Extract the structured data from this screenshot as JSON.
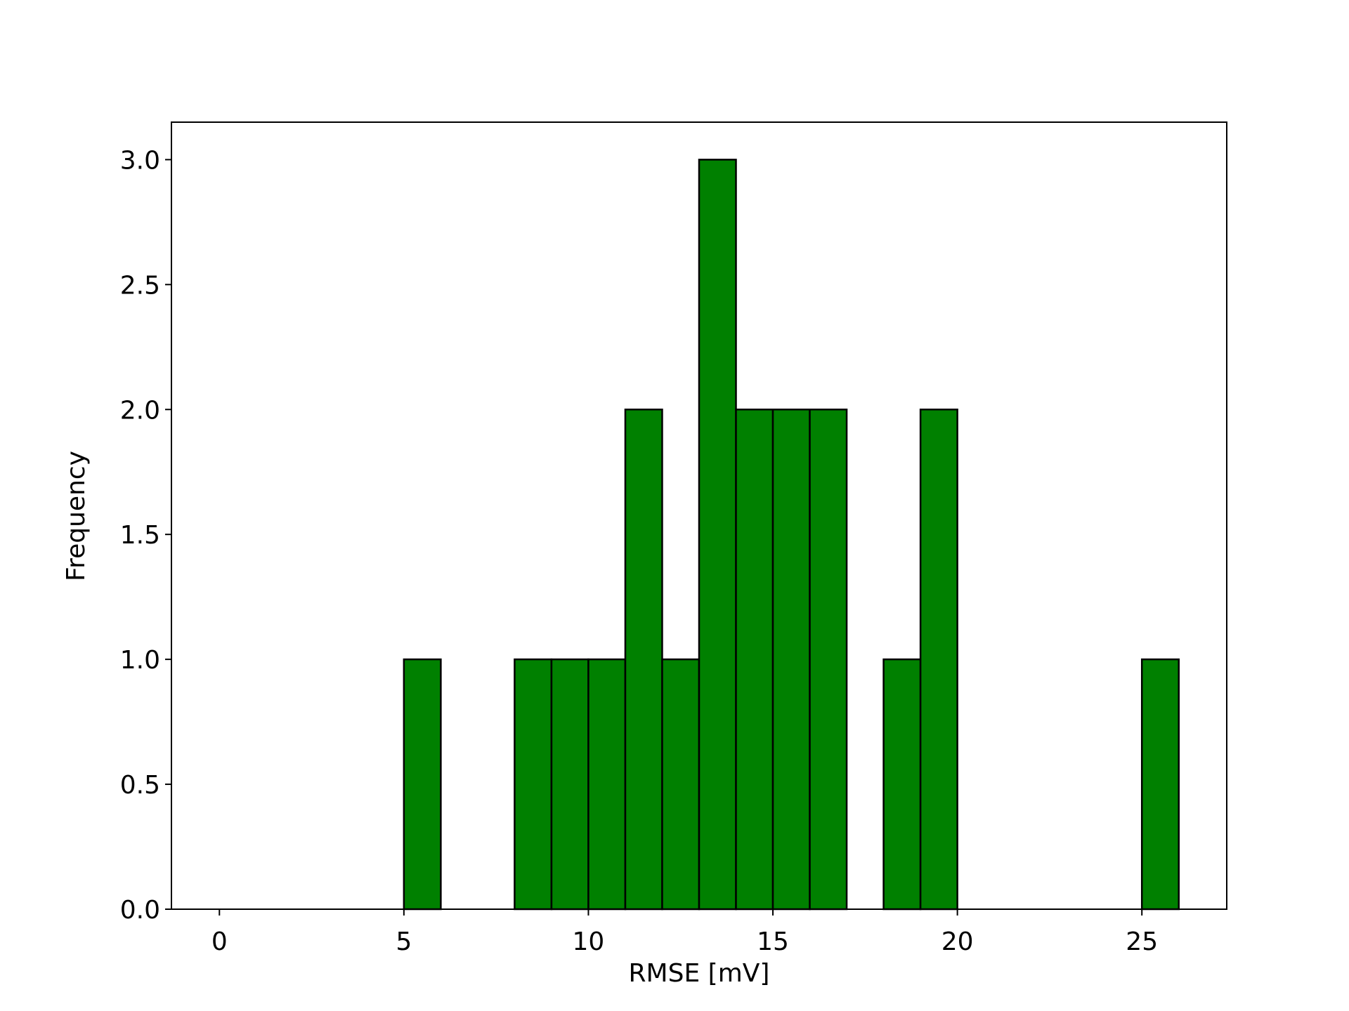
{
  "chart_data": {
    "type": "histogram",
    "xlabel": "RMSE [mV]",
    "ylabel": "Frequency",
    "bins": [
      0,
      1,
      2,
      3,
      4,
      5,
      6,
      7,
      8,
      9,
      10,
      11,
      12,
      13,
      14,
      15,
      16,
      17,
      18,
      19,
      20,
      21,
      22,
      23,
      24,
      25,
      26
    ],
    "counts": [
      0,
      0,
      0,
      0,
      0,
      1,
      0,
      0,
      1,
      1,
      1,
      2,
      1,
      3,
      2,
      2,
      2,
      0,
      1,
      2,
      0,
      0,
      0,
      0,
      0,
      1
    ],
    "color": "#008000",
    "xlim": [
      -1.3,
      27.3
    ],
    "ylim": [
      0,
      3.15
    ],
    "xticks": [
      0,
      5,
      10,
      15,
      20,
      25
    ],
    "yticks": [
      {
        "value": 0,
        "label": "0.0"
      },
      {
        "value": 0.5,
        "label": "0.5"
      },
      {
        "value": 1,
        "label": "1.0"
      },
      {
        "value": 1.5,
        "label": "1.5"
      },
      {
        "value": 2,
        "label": "2.0"
      },
      {
        "value": 2.5,
        "label": "2.5"
      },
      {
        "value": 3,
        "label": "3.0"
      }
    ]
  }
}
